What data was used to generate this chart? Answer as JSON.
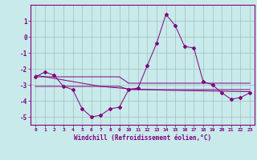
{
  "xlabel": "Windchill (Refroidissement éolien,°C)",
  "x_hours": [
    0,
    1,
    2,
    3,
    4,
    5,
    6,
    7,
    8,
    9,
    10,
    11,
    12,
    13,
    14,
    15,
    16,
    17,
    18,
    19,
    20,
    21,
    22,
    23
  ],
  "y_main": [
    -2.5,
    -2.2,
    -2.4,
    -3.1,
    -3.3,
    -4.5,
    -5.0,
    -4.9,
    -4.5,
    -4.4,
    -3.3,
    -3.2,
    -1.8,
    -0.4,
    1.4,
    0.7,
    -0.6,
    -0.7,
    -2.8,
    -3.0,
    -3.5,
    -3.9,
    -3.8,
    -3.5
  ],
  "y_line1": [
    -2.5,
    -2.5,
    -2.5,
    -2.5,
    -2.5,
    -2.5,
    -2.5,
    -2.5,
    -2.5,
    -2.5,
    -2.9,
    -2.9,
    -2.9,
    -2.9,
    -2.9,
    -2.9,
    -2.9,
    -2.9,
    -2.9,
    -2.9,
    -2.9,
    -2.9,
    -2.9,
    -2.9
  ],
  "y_line2": [
    -3.1,
    -3.1,
    -3.1,
    -3.1,
    -3.1,
    -3.1,
    -3.1,
    -3.1,
    -3.1,
    -3.1,
    -3.3,
    -3.3,
    -3.3,
    -3.3,
    -3.3,
    -3.3,
    -3.3,
    -3.3,
    -3.3,
    -3.3,
    -3.3,
    -3.3,
    -3.3,
    -3.3
  ],
  "y_trend": [
    -2.4,
    -2.5,
    -2.6,
    -2.7,
    -2.8,
    -2.9,
    -3.0,
    -3.1,
    -3.15,
    -3.2,
    -3.25,
    -3.28,
    -3.3,
    -3.32,
    -3.34,
    -3.35,
    -3.36,
    -3.37,
    -3.38,
    -3.39,
    -3.4,
    -3.41,
    -3.42,
    -3.43
  ],
  "bg_color": "#c8eaea",
  "grid_color": "#9dbfbf",
  "line_color": "#800080",
  "ylim": [
    -5.5,
    2.0
  ],
  "yticks": [
    -5,
    -4,
    -3,
    -2,
    -1,
    0,
    1
  ],
  "xlim": [
    -0.5,
    23.5
  ]
}
